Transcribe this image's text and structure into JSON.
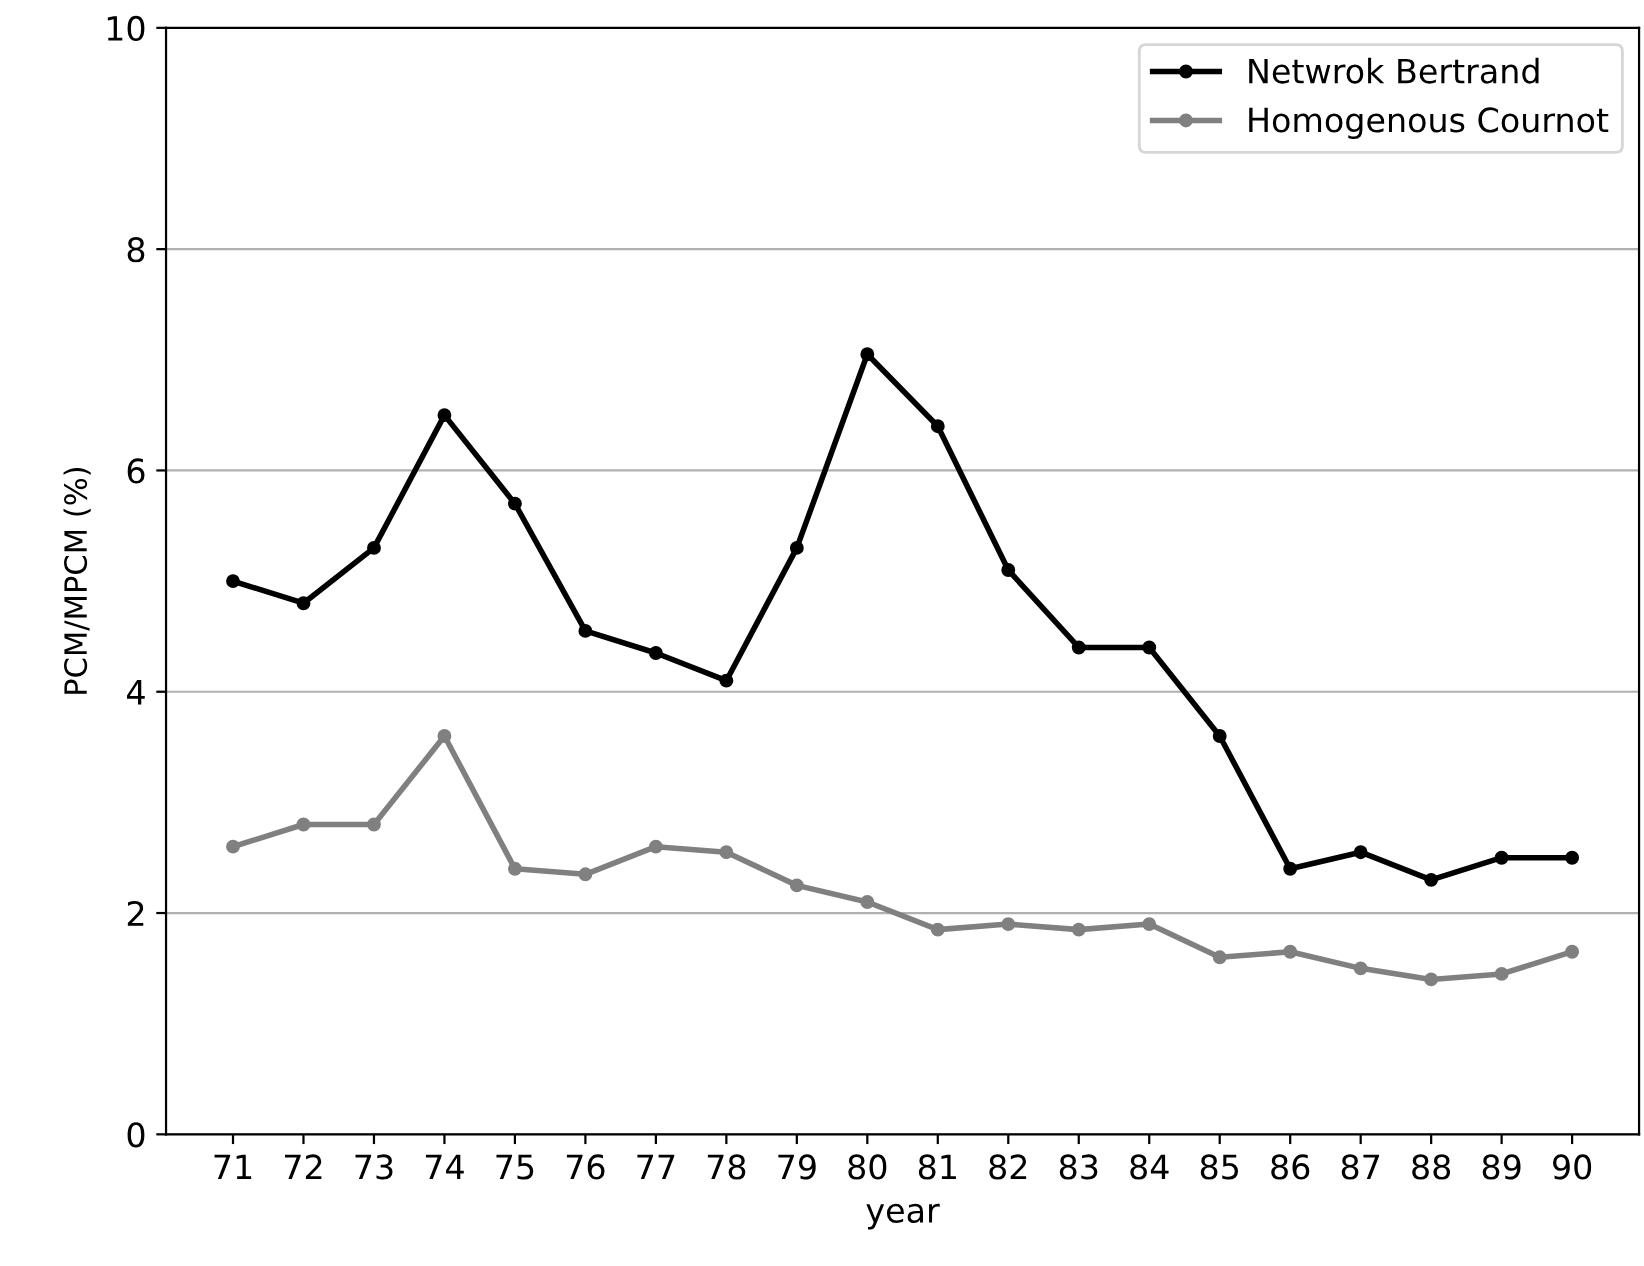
{
  "chart_data": {
    "type": "line",
    "xlabel": "year",
    "ylabel": "PCM/MPCM (%)",
    "categories": [
      "71",
      "72",
      "73",
      "74",
      "75",
      "76",
      "77",
      "78",
      "79",
      "80",
      "81",
      "82",
      "83",
      "84",
      "85",
      "86",
      "87",
      "88",
      "89",
      "90"
    ],
    "series": [
      {
        "name": "Netwrok Bertrand",
        "color": "#000000",
        "values": [
          5.0,
          4.8,
          5.3,
          6.5,
          5.7,
          4.55,
          4.35,
          4.1,
          5.3,
          7.05,
          6.4,
          5.1,
          4.4,
          4.4,
          3.6,
          2.4,
          2.55,
          2.3,
          2.5,
          2.5
        ]
      },
      {
        "name": "Homogenous Cournot",
        "color": "#808080",
        "values": [
          2.6,
          2.8,
          2.8,
          3.6,
          2.4,
          2.35,
          2.6,
          2.55,
          2.25,
          2.1,
          1.85,
          1.9,
          1.85,
          1.9,
          1.6,
          1.65,
          1.5,
          1.4,
          1.45,
          1.65
        ]
      }
    ],
    "ylim": [
      0,
      10
    ],
    "yticks": [
      0,
      2,
      4,
      6,
      8,
      10
    ],
    "grid": "y",
    "legend": "top right",
    "marker": "circle",
    "line_style": "solid"
  }
}
